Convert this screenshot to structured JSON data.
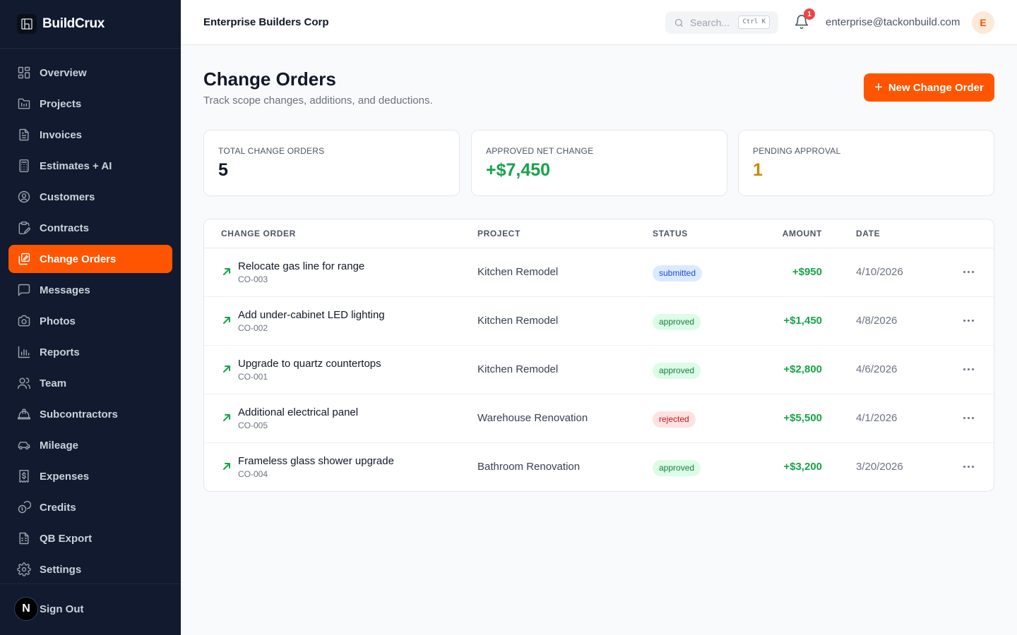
{
  "brand": {
    "name": "BuildCrux"
  },
  "sidebar": {
    "items": [
      {
        "label": "Overview",
        "icon": "layout-grid-icon",
        "active": false
      },
      {
        "label": "Projects",
        "icon": "folder-icon",
        "active": false
      },
      {
        "label": "Invoices",
        "icon": "file-text-icon",
        "active": false
      },
      {
        "label": "Estimates + AI",
        "icon": "calculator-icon",
        "active": false
      },
      {
        "label": "Customers",
        "icon": "user-circle-icon",
        "active": false
      },
      {
        "label": "Contracts",
        "icon": "clipboard-pen-icon",
        "active": false
      },
      {
        "label": "Change Orders",
        "icon": "copy-edit-icon",
        "active": true
      },
      {
        "label": "Messages",
        "icon": "message-square-icon",
        "active": false
      },
      {
        "label": "Photos",
        "icon": "camera-icon",
        "active": false
      },
      {
        "label": "Reports",
        "icon": "bar-chart-icon",
        "active": false
      },
      {
        "label": "Team",
        "icon": "users-icon",
        "active": false
      },
      {
        "label": "Subcontractors",
        "icon": "hard-hat-icon",
        "active": false
      },
      {
        "label": "Mileage",
        "icon": "car-icon",
        "active": false
      },
      {
        "label": "Expenses",
        "icon": "receipt-dollar-icon",
        "active": false
      },
      {
        "label": "Credits",
        "icon": "coins-icon",
        "active": false
      },
      {
        "label": "QB Export",
        "icon": "file-spreadsheet-icon",
        "active": false
      },
      {
        "label": "Settings",
        "icon": "gear-icon",
        "active": false
      }
    ],
    "footer": {
      "badge": "N",
      "signout_label": "Sign Out"
    }
  },
  "header": {
    "company": "Enterprise Builders Corp",
    "search": {
      "placeholder": "Search...",
      "shortcut": "Ctrl K"
    },
    "notifications": {
      "count": "1"
    },
    "user_email": "enterprise@tackonbuild.com",
    "avatar_initial": "E"
  },
  "page": {
    "title": "Change Orders",
    "subtitle": "Track scope changes, additions, and deductions.",
    "new_button_label": "New Change Order"
  },
  "stats": [
    {
      "label": "TOTAL CHANGE ORDERS",
      "value": "5",
      "color": "#111827"
    },
    {
      "label": "APPROVED NET CHANGE",
      "value": "+$7,450",
      "color": "#16a34a"
    },
    {
      "label": "PENDING APPROVAL",
      "value": "1",
      "color": "#ca8a04"
    }
  ],
  "table": {
    "headers": {
      "change_order": "CHANGE ORDER",
      "project": "PROJECT",
      "status": "STATUS",
      "amount": "AMOUNT",
      "date": "DATE"
    },
    "rows": [
      {
        "title": "Relocate gas line for range",
        "id": "CO-003",
        "project": "Kitchen Remodel",
        "status": "submitted",
        "amount": "+$950",
        "date": "4/10/2026"
      },
      {
        "title": "Add under-cabinet LED lighting",
        "id": "CO-002",
        "project": "Kitchen Remodel",
        "status": "approved",
        "amount": "+$1,450",
        "date": "4/8/2026"
      },
      {
        "title": "Upgrade to quartz countertops",
        "id": "CO-001",
        "project": "Kitchen Remodel",
        "status": "approved",
        "amount": "+$2,800",
        "date": "4/6/2026"
      },
      {
        "title": "Additional electrical panel",
        "id": "CO-005",
        "project": "Warehouse Renovation",
        "status": "rejected",
        "amount": "+$5,500",
        "date": "4/1/2026"
      },
      {
        "title": "Frameless glass shower upgrade",
        "id": "CO-004",
        "project": "Bathroom Renovation",
        "status": "approved",
        "amount": "+$3,200",
        "date": "3/20/2026"
      }
    ]
  },
  "colors": {
    "accent": "#ff5500",
    "sidebar_bg": "#111a2e",
    "positive": "#16a34a",
    "pending": "#ca8a04"
  }
}
